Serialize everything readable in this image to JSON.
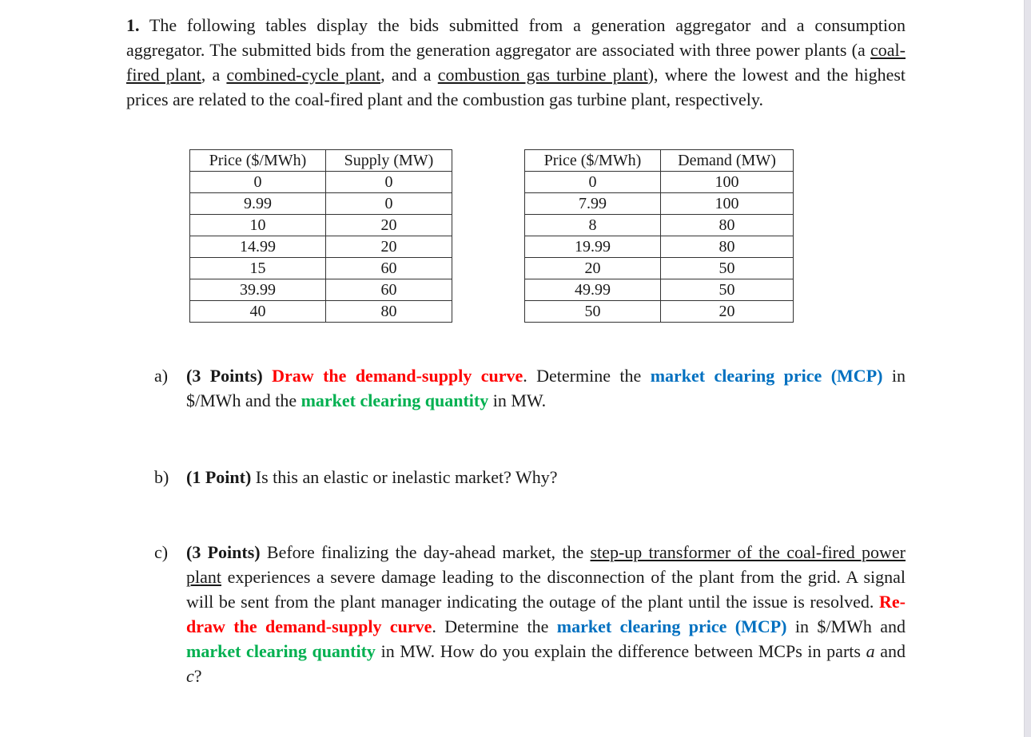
{
  "question": {
    "number": "1.",
    "t1": " The following tables display the bids submitted from a generation aggregator and a consumption aggregator. The submitted bids from the generation aggregator are associated with three power plants (a ",
    "u1": "coal-fired plant",
    "t2": ", a ",
    "u2": "combined-cycle plant",
    "t3": ", and a ",
    "u3": "combustion gas turbine plant",
    "t4": "), where the lowest and the highest prices are related to the coal-fired plant and the combustion gas turbine plant, respectively."
  },
  "supply_table": {
    "headers": [
      "Price ($/MWh)",
      "Supply (MW)"
    ],
    "rows": [
      [
        "0",
        "0"
      ],
      [
        "9.99",
        "0"
      ],
      [
        "10",
        "20"
      ],
      [
        "14.99",
        "20"
      ],
      [
        "15",
        "60"
      ],
      [
        "39.99",
        "60"
      ],
      [
        "40",
        "80"
      ]
    ]
  },
  "demand_table": {
    "headers": [
      "Price ($/MWh)",
      "Demand (MW)"
    ],
    "rows": [
      [
        "0",
        "100"
      ],
      [
        "7.99",
        "100"
      ],
      [
        "8",
        "80"
      ],
      [
        "19.99",
        "80"
      ],
      [
        "20",
        "50"
      ],
      [
        "49.99",
        "50"
      ],
      [
        "50",
        "20"
      ]
    ]
  },
  "part_a": {
    "label": "a)",
    "points": "(3 Points)",
    "red": "Draw the demand-supply curve",
    "t1": ". Determine the ",
    "blue": "market clearing price (MCP)",
    "t2": " in $/MWh and the ",
    "green": "market clearing quantity",
    "t3": " in MW."
  },
  "part_b": {
    "label": "b)",
    "points": "(1 Point)",
    "t1": " Is this an elastic or inelastic market? Why?"
  },
  "part_c": {
    "label": "c)",
    "points": "(3 Points)",
    "t1": " Before finalizing the day-ahead market, the ",
    "u1": "step-up transformer of the coal-fired power plant",
    "t2": " experiences a severe damage leading to the disconnection of the plant from the grid. A signal will be sent from the plant manager indicating the outage of the plant until the issue is resolved. ",
    "red": "Re-draw the demand-supply curve",
    "t3": ". Determine the ",
    "blue": "market clearing price (MCP)",
    "t4": " in $/MWh and ",
    "green": "market clearing quantity",
    "t5": " in MW. How do you explain the difference between MCPs in parts ",
    "i1": "a",
    "t6": " and ",
    "i2": "c",
    "t7": "?"
  },
  "colors": {
    "red": "#ff0000",
    "blue": "#0070c0",
    "green": "#00b050"
  }
}
